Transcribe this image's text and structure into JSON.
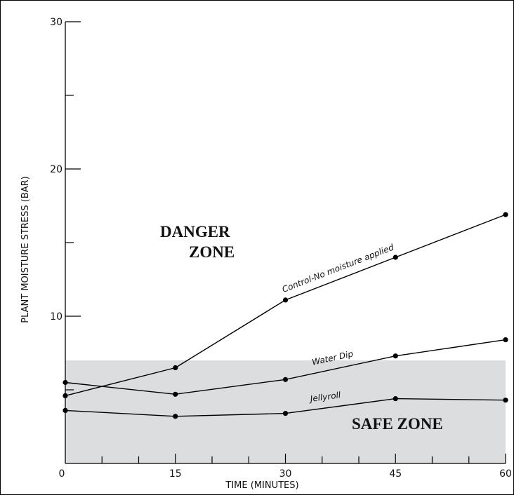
{
  "chart_data": {
    "type": "line",
    "title": "",
    "xlabel": "TIME (MINUTES)",
    "ylabel": "PLANT MOISTURE STRESS (BAR)",
    "xlim": [
      0,
      60
    ],
    "ylim": [
      0,
      30
    ],
    "x_ticks": [
      0,
      15,
      30,
      45,
      60
    ],
    "y_ticks": [
      0,
      10,
      20,
      30
    ],
    "x_minor_step": 5,
    "y_minor_step": 5,
    "x": [
      0,
      15,
      30,
      45,
      60
    ],
    "series": [
      {
        "name": "Control-No moisture applied",
        "values": [
          4.6,
          6.5,
          11.1,
          14.0,
          16.9
        ]
      },
      {
        "name": "Water Dip",
        "values": [
          5.5,
          4.7,
          5.7,
          7.3,
          8.4
        ]
      },
      {
        "name": "Jellyroll",
        "values": [
          3.6,
          3.2,
          3.4,
          4.4,
          4.3
        ]
      }
    ],
    "safe_zone_max": 7,
    "annotations": {
      "danger_line1": "DANGER",
      "danger_line2": "ZONE",
      "safe": "SAFE ZONE"
    },
    "grid": false,
    "colors": {
      "line": "#000000",
      "safe_zone": "#dcdddf"
    }
  }
}
